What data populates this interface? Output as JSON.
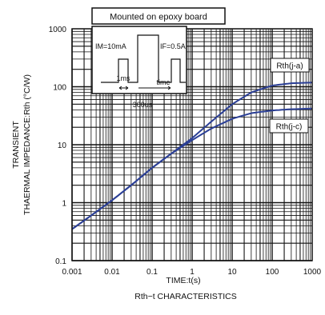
{
  "chart_data": {
    "type": "line",
    "title": "Mounted on epoxy board",
    "caption": "Rth−t CHARACTERISTICS",
    "xlabel": "TIME:t(s)",
    "ylabel_line1": "TRANSIENT",
    "ylabel_line2": "THAERMAL IMPEDANCE:Rth (°C/W)",
    "xscale": "log",
    "yscale": "log",
    "xlim": [
      0.001,
      1000
    ],
    "ylim": [
      0.1,
      1000
    ],
    "x_ticks": [
      0.001,
      0.01,
      0.1,
      1,
      10,
      100,
      1000
    ],
    "x_tick_labels": [
      "0.001",
      "0.01",
      "0.1",
      "1",
      "10",
      "100",
      "1000"
    ],
    "y_ticks": [
      0.1,
      1,
      10,
      100,
      1000
    ],
    "y_tick_labels": [
      "0.1",
      "1",
      "10",
      "100",
      "1000"
    ],
    "grid": true,
    "series": [
      {
        "name": "Rth(j-a)",
        "x": [
          0.001,
          0.003,
          0.01,
          0.03,
          0.1,
          0.3,
          1,
          3,
          10,
          30,
          100,
          300,
          1000
        ],
        "y": [
          0.35,
          0.6,
          1.1,
          2.0,
          4.0,
          7.0,
          13,
          25,
          50,
          80,
          105,
          115,
          118
        ]
      },
      {
        "name": "Rth(j-c)",
        "x": [
          0.001,
          0.003,
          0.01,
          0.03,
          0.1,
          0.3,
          1,
          3,
          10,
          30,
          100,
          300,
          1000
        ],
        "y": [
          0.35,
          0.6,
          1.1,
          2.0,
          4.0,
          7.0,
          12,
          19,
          28,
          35,
          39,
          41,
          42
        ]
      }
    ],
    "inset": {
      "pulse_left_label": "IM=10mA",
      "pulse_right_label": "IF=0.5A",
      "width_label": "1ms",
      "time_label": "time",
      "period_label": "300us"
    }
  },
  "colors": {
    "curve": "#2b3f96",
    "grid": "#111111",
    "text": "#111111"
  }
}
